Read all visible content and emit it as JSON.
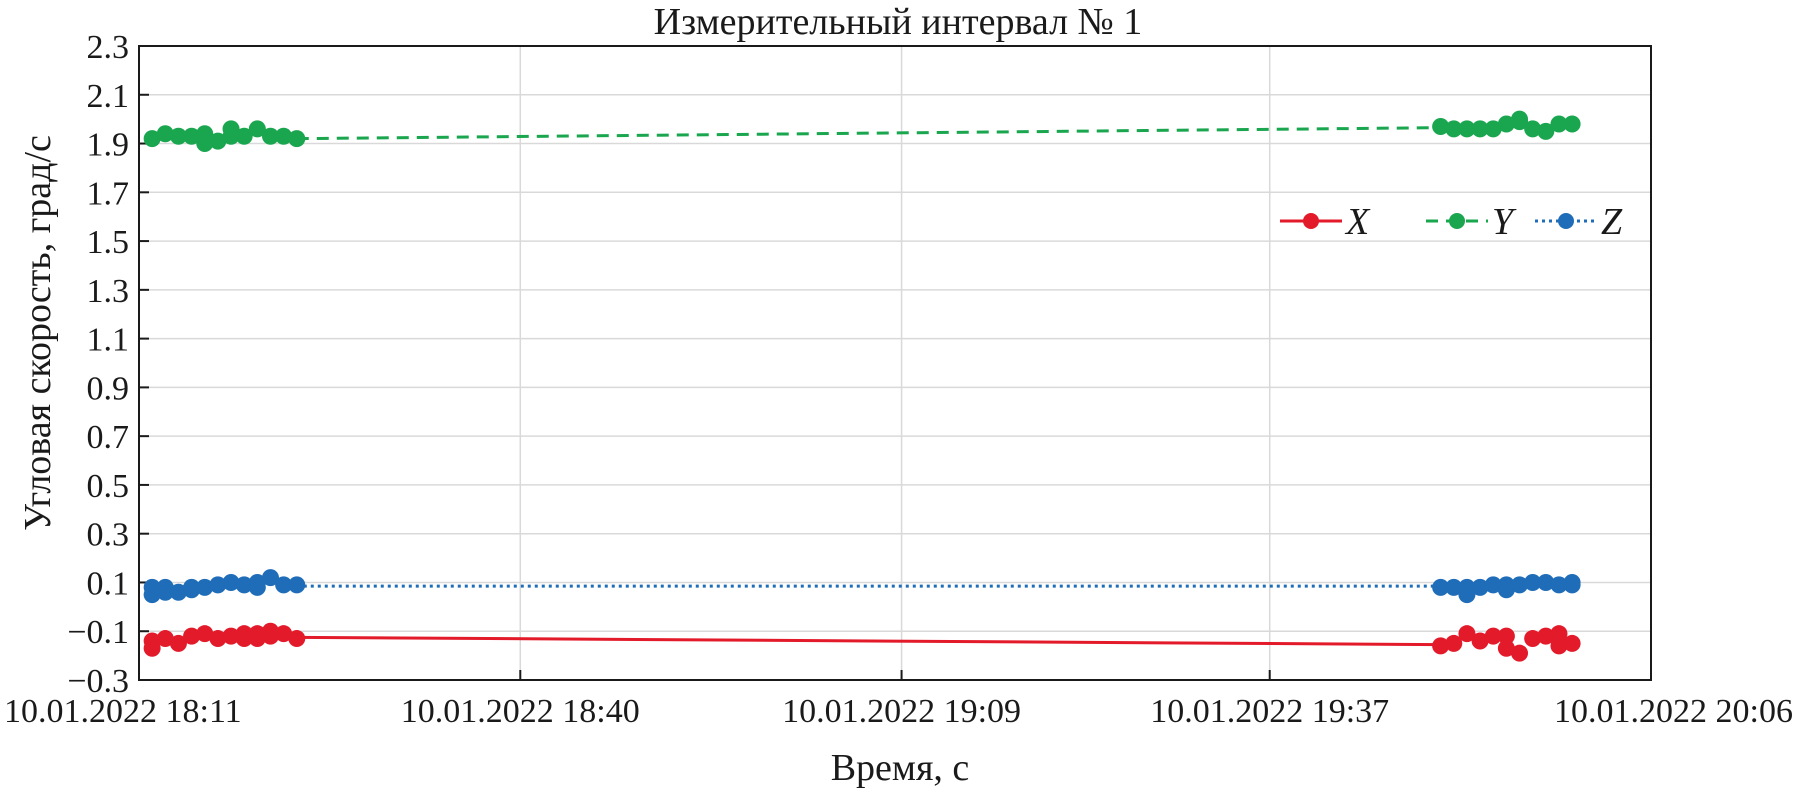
{
  "chart_data": {
    "type": "line",
    "title": "Измерительный интервал № 1",
    "xlabel": "Время, с",
    "ylabel": "Угловая скорость, град/с",
    "x_range": [
      "10.01.2022 18:11",
      "10.01.2022 20:06"
    ],
    "ylim": [
      -0.3,
      2.3
    ],
    "x_ticks": [
      "10.01.2022 18:11",
      "10.01.2022 18:40",
      "10.01.2022 19:09",
      "10.01.2022 19:37",
      "10.01.2022 20:06"
    ],
    "y_ticks": [
      "−0.3",
      "−0.1",
      "0.1",
      "0.3",
      "0.5",
      "0.7",
      "0.9",
      "1.1",
      "1.3",
      "1.5",
      "1.7",
      "1.9",
      "2.1",
      "2.3"
    ],
    "grid": true,
    "legend_position": "right",
    "series": [
      {
        "name": "X",
        "color": "#e31a2a",
        "line_style": "solid",
        "x": [
          "10.01.2022 18:12",
          "10.01.2022 18:12",
          "10.01.2022 18:13",
          "10.01.2022 18:14",
          "10.01.2022 18:15",
          "10.01.2022 18:16",
          "10.01.2022 18:17",
          "10.01.2022 18:18",
          "10.01.2022 18:19",
          "10.01.2022 18:19",
          "10.01.2022 18:20",
          "10.01.2022 18:20",
          "10.01.2022 18:21",
          "10.01.2022 18:21",
          "10.01.2022 18:22",
          "10.01.2022 18:23",
          "10.01.2022 19:50",
          "10.01.2022 19:51",
          "10.01.2022 19:52",
          "10.01.2022 19:53",
          "10.01.2022 19:54",
          "10.01.2022 19:55",
          "10.01.2022 19:55",
          "10.01.2022 19:56",
          "10.01.2022 19:57",
          "10.01.2022 19:58",
          "10.01.2022 19:59",
          "10.01.2022 19:59",
          "10.01.2022 20:00"
        ],
        "y": [
          -0.14,
          -0.17,
          -0.13,
          -0.15,
          -0.12,
          -0.11,
          -0.13,
          -0.12,
          -0.11,
          -0.13,
          -0.11,
          -0.13,
          -0.1,
          -0.12,
          -0.11,
          -0.13,
          -0.16,
          -0.15,
          -0.11,
          -0.14,
          -0.12,
          -0.17,
          -0.12,
          -0.19,
          -0.13,
          -0.12,
          -0.11,
          -0.16,
          -0.15
        ]
      },
      {
        "name": "Y",
        "color": "#1aa64f",
        "line_style": "dashed",
        "x": [
          "10.01.2022 18:12",
          "10.01.2022 18:13",
          "10.01.2022 18:14",
          "10.01.2022 18:15",
          "10.01.2022 18:16",
          "10.01.2022 18:16",
          "10.01.2022 18:17",
          "10.01.2022 18:18",
          "10.01.2022 18:18",
          "10.01.2022 18:19",
          "10.01.2022 18:20",
          "10.01.2022 18:21",
          "10.01.2022 18:22",
          "10.01.2022 18:23",
          "10.01.2022 19:50",
          "10.01.2022 19:51",
          "10.01.2022 19:52",
          "10.01.2022 19:53",
          "10.01.2022 19:54",
          "10.01.2022 19:55",
          "10.01.2022 19:56",
          "10.01.2022 19:56",
          "10.01.2022 19:57",
          "10.01.2022 19:58",
          "10.01.2022 19:59",
          "10.01.2022 20:00"
        ],
        "y": [
          1.92,
          1.94,
          1.93,
          1.93,
          1.94,
          1.9,
          1.91,
          1.96,
          1.93,
          1.93,
          1.96,
          1.93,
          1.93,
          1.92,
          1.97,
          1.96,
          1.96,
          1.96,
          1.96,
          1.98,
          1.99,
          2.0,
          1.96,
          1.95,
          1.98,
          1.98
        ]
      },
      {
        "name": "Z",
        "color": "#1f6db8",
        "line_style": "dotted",
        "x": [
          "10.01.2022 18:12",
          "10.01.2022 18:12",
          "10.01.2022 18:13",
          "10.01.2022 18:13",
          "10.01.2022 18:14",
          "10.01.2022 18:15",
          "10.01.2022 18:15",
          "10.01.2022 18:16",
          "10.01.2022 18:17",
          "10.01.2022 18:18",
          "10.01.2022 18:19",
          "10.01.2022 18:20",
          "10.01.2022 18:20",
          "10.01.2022 18:21",
          "10.01.2022 18:22",
          "10.01.2022 18:23",
          "10.01.2022 19:50",
          "10.01.2022 19:51",
          "10.01.2022 19:52",
          "10.01.2022 19:52",
          "10.01.2022 19:53",
          "10.01.2022 19:54",
          "10.01.2022 19:55",
          "10.01.2022 19:55",
          "10.01.2022 19:56",
          "10.01.2022 19:57",
          "10.01.2022 19:58",
          "10.01.2022 19:59",
          "10.01.2022 20:00",
          "10.01.2022 20:00"
        ],
        "y": [
          0.08,
          0.05,
          0.08,
          0.06,
          0.06,
          0.08,
          0.07,
          0.08,
          0.09,
          0.1,
          0.09,
          0.08,
          0.1,
          0.12,
          0.09,
          0.09,
          0.08,
          0.08,
          0.08,
          0.05,
          0.08,
          0.09,
          0.09,
          0.07,
          0.09,
          0.1,
          0.1,
          0.09,
          0.09,
          0.1
        ]
      }
    ],
    "trend_lines": [
      {
        "series": "X",
        "from": [
          "10.01.2022 18:23",
          -0.125
        ],
        "to": [
          "10.01.2022 19:50",
          -0.155
        ]
      },
      {
        "series": "Y",
        "from": [
          "10.01.2022 18:23",
          1.92
        ],
        "to": [
          "10.01.2022 19:50",
          1.965
        ]
      },
      {
        "series": "Z",
        "from": [
          "10.01.2022 18:23",
          0.085
        ],
        "to": [
          "10.01.2022 19:50",
          0.085
        ]
      }
    ]
  }
}
